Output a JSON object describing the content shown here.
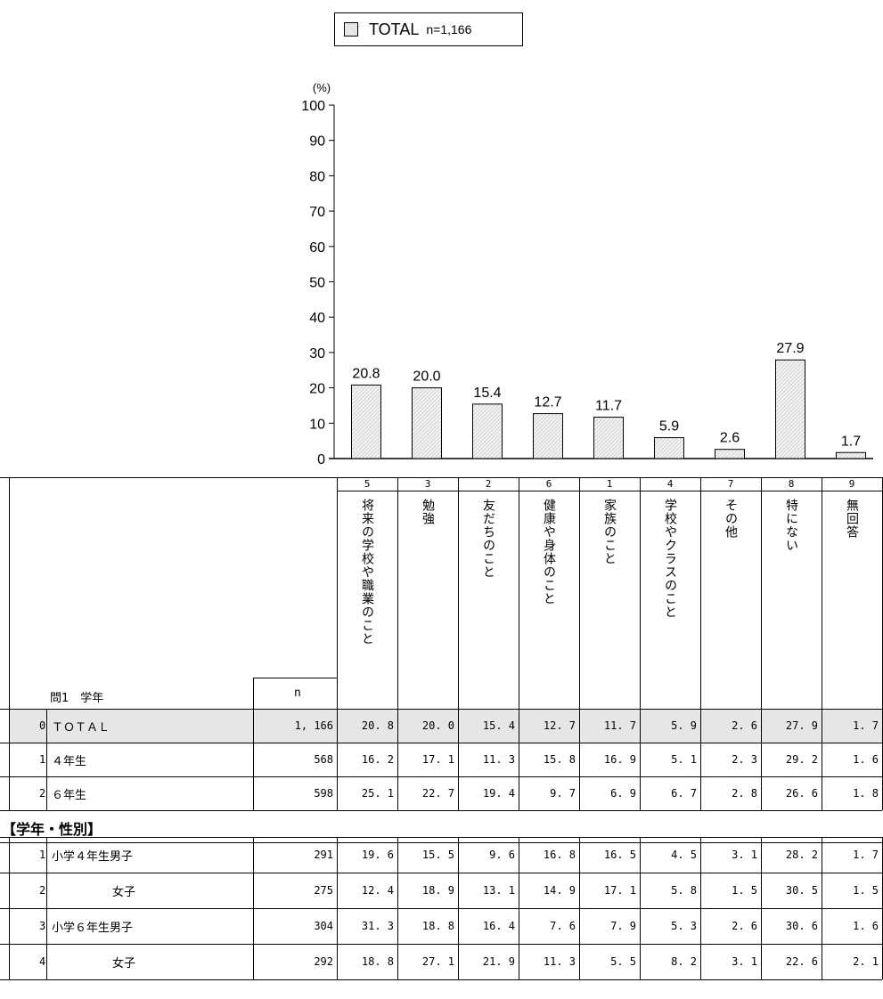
{
  "legend": {
    "label": "TOTAL",
    "n_label": "n=1,166"
  },
  "chart_data": {
    "type": "bar",
    "yunit": "(%)",
    "ylim": [
      0,
      100
    ],
    "yticks": [
      0,
      10,
      20,
      30,
      40,
      50,
      60,
      70,
      80,
      90,
      100
    ],
    "series": [
      {
        "values": [
          20.8,
          20.0,
          15.4,
          12.7,
          11.7,
          5.9,
          2.6,
          27.9,
          1.7
        ]
      }
    ],
    "value_labels": [
      "20.8",
      "20.0",
      "15.4",
      "12.7",
      "11.7",
      "5.9",
      "2.6",
      "27.9",
      "1.7"
    ],
    "grid": false
  },
  "table": {
    "columns": [
      {
        "code": "5",
        "label": "将来の学校や職業のこと"
      },
      {
        "code": "3",
        "label": "勉強"
      },
      {
        "code": "2",
        "label": "友だちのこと"
      },
      {
        "code": "6",
        "label": "健康や身体のこと"
      },
      {
        "code": "1",
        "label": "家族のこと"
      },
      {
        "code": "4",
        "label": "学校やクラスのこと"
      },
      {
        "code": "7",
        "label": "その他"
      },
      {
        "code": "8",
        "label": "特にない"
      },
      {
        "code": "9",
        "label": "無回答"
      }
    ],
    "question_label": "問1　学年",
    "n_header": "n",
    "rows": [
      {
        "idx": "0",
        "label": "ＴＯＴＡＬ",
        "n": "1, 166",
        "vals": [
          "20. 8",
          "20. 0",
          "15. 4",
          "12. 7",
          "11. 7",
          "5. 9",
          "2. 6",
          "27. 9",
          "1. 7"
        ],
        "shaded": true
      },
      {
        "idx": "1",
        "label": "４年生",
        "n": "568",
        "vals": [
          "16. 2",
          "17. 1",
          "11. 3",
          "15. 8",
          "16. 9",
          "5. 1",
          "2. 3",
          "29. 2",
          "1. 6"
        ]
      },
      {
        "idx": "2",
        "label": "６年生",
        "n": "598",
        "vals": [
          "25. 1",
          "22. 7",
          "19. 4",
          "9. 7",
          "6. 9",
          "6. 7",
          "2. 8",
          "26. 6",
          "1. 8"
        ]
      }
    ],
    "section_title": "【学年・性別】",
    "rows2": [
      {
        "idx": "1",
        "label": "小学４年生男子",
        "n": "291",
        "vals": [
          "19. 6",
          "15. 5",
          "9. 6",
          "16. 8",
          "16. 5",
          "4. 5",
          "3. 1",
          "28. 2",
          "1. 7"
        ]
      },
      {
        "idx": "2",
        "label": "女子",
        "n": "275",
        "vals": [
          "12. 4",
          "18. 9",
          "13. 1",
          "14. 9",
          "17. 1",
          "5. 8",
          "1. 5",
          "30. 5",
          "1. 5"
        ],
        "indent": true
      },
      {
        "idx": "3",
        "label": "小学６年生男子",
        "n": "304",
        "vals": [
          "31. 3",
          "18. 8",
          "16. 4",
          "7. 6",
          "7. 9",
          "5. 3",
          "2. 6",
          "30. 6",
          "1. 6"
        ]
      },
      {
        "idx": "4",
        "label": "女子",
        "n": "292",
        "vals": [
          "18. 8",
          "27. 1",
          "21. 9",
          "11. 3",
          "5. 5",
          "8. 2",
          "3. 1",
          "22. 6",
          "2. 1"
        ],
        "indent": true
      }
    ]
  }
}
